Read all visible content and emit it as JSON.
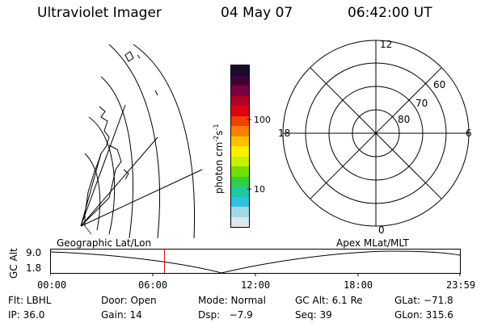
{
  "header": {
    "title": "Ultraviolet Imager",
    "date": "04 May 07",
    "time": "06:42:00 UT"
  },
  "colorbar": {
    "unit_label": "photon cm",
    "unit_exp1": "-2",
    "unit_mid": "s",
    "unit_exp2": "-1",
    "ticks": [
      {
        "label": "100",
        "value": 100
      },
      {
        "label": "10",
        "value": 10
      }
    ],
    "colors": [
      "#1a0a30",
      "#440033",
      "#7a0040",
      "#b00028",
      "#e00010",
      "#f04000",
      "#f88000",
      "#fcc000",
      "#f8f000",
      "#c8f000",
      "#70e000",
      "#30d040",
      "#20c8a0",
      "#30c0e0",
      "#a0d8e8",
      "#d8e8ec"
    ]
  },
  "polar_plot": {
    "labels": {
      "top": "12",
      "bottom": "0",
      "left": "18",
      "right": "6"
    },
    "lat_labels": [
      "60",
      "70",
      "80"
    ]
  },
  "timeline": {
    "left_title": "Geographic Lat/Lon",
    "right_title": "Apex MLat/MLT",
    "axis_label": "GC Alt",
    "y_labels": [
      "9.0",
      "1.8"
    ],
    "x_labels": [
      "00:00",
      "06:00",
      "12:00",
      "18:00",
      "23:59"
    ],
    "current_time_hours": 6.7,
    "marker_color": "#dd0000"
  },
  "info": {
    "row1": [
      "Flt: LBHL",
      "Door: Open",
      "Mode: Normal",
      "GC Alt: 6.1 Re",
      "GLat: −71.8"
    ],
    "row2": [
      "IP: 36.0",
      "Gain: 14",
      "Dsp:   −7.9",
      "Seq: 39",
      "GLon: 315.6"
    ]
  }
}
